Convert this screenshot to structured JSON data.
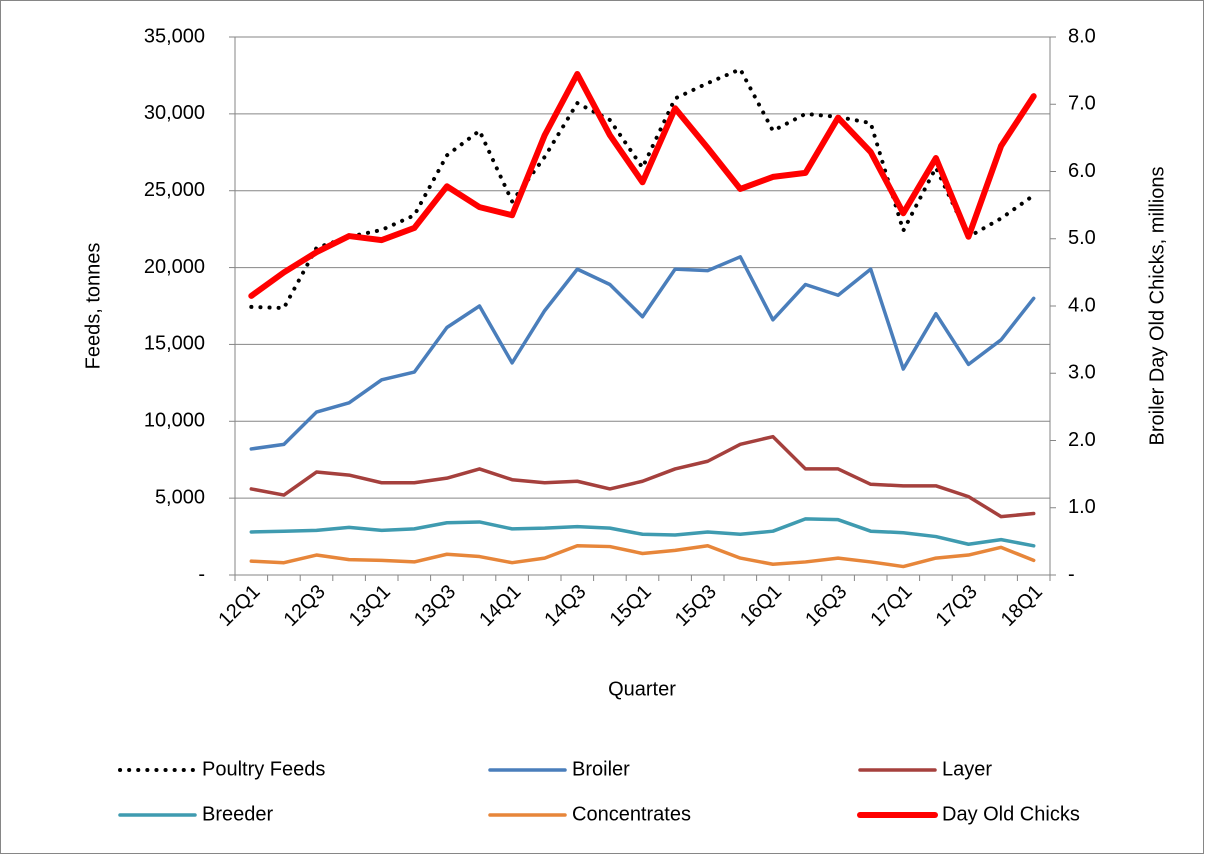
{
  "chart_data": {
    "type": "line",
    "x_label": "Quarter",
    "y_label": "Feeds, tonnes",
    "y2_label": "Broiler Day Old Chicks, millions",
    "categories": [
      "12Q1",
      null,
      "12Q3",
      null,
      "13Q1",
      null,
      "13Q3",
      null,
      "14Q1",
      null,
      "14Q3",
      null,
      "15Q1",
      null,
      "15Q3",
      null,
      "16Q1",
      null,
      "16Q3",
      null,
      "17Q1",
      null,
      "17Q3",
      null,
      "18Q1"
    ],
    "series": [
      {
        "name": "Poultry Feeds",
        "color": "#000000",
        "linestyle": "dotted",
        "linewidth": 4,
        "values": [
          17440,
          17370,
          21280,
          22000,
          22450,
          23400,
          27300,
          28900,
          24300,
          27200,
          30700,
          29600,
          26500,
          31000,
          32000,
          32900,
          28900,
          30000,
          29800,
          29400,
          22400,
          26500,
          22000,
          23200,
          24700
        ]
      },
      {
        "name": "Broiler",
        "color": "#4a7ebb",
        "linestyle": "solid",
        "linewidth": 3.5,
        "values": [
          8200,
          8500,
          10600,
          11200,
          12700,
          13200,
          16100,
          17500,
          13800,
          17200,
          19900,
          18900,
          16800,
          19900,
          19800,
          20700,
          16600,
          18900,
          18200,
          19900,
          13400,
          17000,
          13700,
          15300,
          18000
        ]
      },
      {
        "name": "Layer",
        "color": "#a5403d",
        "linestyle": "solid",
        "linewidth": 3.5,
        "values": [
          5600,
          5200,
          6700,
          6500,
          6000,
          6000,
          6300,
          6900,
          6200,
          6000,
          6100,
          5600,
          6100,
          6900,
          7400,
          8500,
          9000,
          6900,
          6900,
          5900,
          5800,
          5800,
          5100,
          3800,
          4000
        ]
      },
      {
        "name": "Breeder",
        "color": "#3f9bb0",
        "linestyle": "solid",
        "linewidth": 3.5,
        "values": [
          2800,
          2850,
          2900,
          3100,
          2900,
          3000,
          3400,
          3450,
          3000,
          3050,
          3150,
          3050,
          2650,
          2600,
          2800,
          2650,
          2850,
          3650,
          3600,
          2850,
          2750,
          2500,
          2000,
          2300,
          1900
        ]
      },
      {
        "name": "Concentrates",
        "color": "#e7863a",
        "linestyle": "solid",
        "linewidth": 3.5,
        "values": [
          900,
          800,
          1300,
          1000,
          950,
          850,
          1350,
          1200,
          800,
          1100,
          1900,
          1850,
          1400,
          1600,
          1900,
          1100,
          700,
          850,
          1100,
          850,
          550,
          1100,
          1300,
          1800,
          950
        ]
      },
      {
        "name": "Day Old Chicks",
        "color": "#ff0000",
        "linestyle": "solid",
        "linewidth": 6,
        "axis": "y2",
        "values": [
          4.15,
          4.5,
          4.8,
          5.04,
          4.98,
          5.16,
          5.78,
          5.47,
          5.35,
          6.54,
          7.45,
          6.54,
          5.84,
          6.94,
          6.35,
          5.74,
          5.92,
          5.98,
          6.8,
          6.29,
          5.38,
          6.2,
          5.03,
          6.38,
          7.12
        ]
      }
    ],
    "ylim": [
      0,
      35000
    ],
    "yticks": [
      {
        "value": 0,
        "label": "-"
      },
      {
        "value": 5000,
        "label": "5,000"
      },
      {
        "value": 10000,
        "label": "10,000"
      },
      {
        "value": 15000,
        "label": "15,000"
      },
      {
        "value": 20000,
        "label": "20,000"
      },
      {
        "value": 25000,
        "label": "25,000"
      },
      {
        "value": 30000,
        "label": "30,000"
      },
      {
        "value": 35000,
        "label": "35,000"
      }
    ],
    "y2lim": [
      0,
      8
    ],
    "y2ticks": [
      {
        "value": 0,
        "label": "-"
      },
      {
        "value": 1,
        "label": "1.0"
      },
      {
        "value": 2,
        "label": "2.0"
      },
      {
        "value": 3,
        "label": "3.0"
      },
      {
        "value": 4,
        "label": "4.0"
      },
      {
        "value": 5,
        "label": "5.0"
      },
      {
        "value": 6,
        "label": "6.0"
      },
      {
        "value": 7,
        "label": "7.0"
      },
      {
        "value": 8,
        "label": "8.0"
      }
    ],
    "grid": true,
    "legend": "bottom"
  }
}
